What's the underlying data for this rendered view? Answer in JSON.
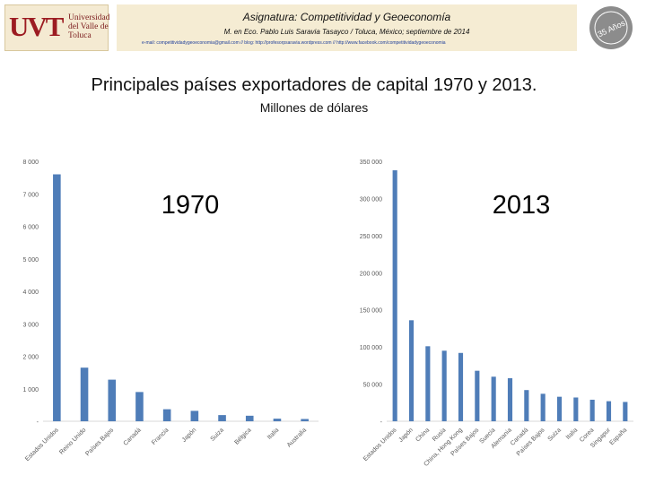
{
  "header": {
    "logo_mark": "UVT",
    "logo_text": "Universidad del Valle de Toluca",
    "title": "Asignatura: Competitividad y Geoeconomía",
    "subtitle": "M. en Eco. Pablo Luis Saravia Tasayco / Toluca, México; septiembre de 2014",
    "contact": "e-mail: competitividadygeoeconomia@gmail.com // blog: http://profesorpsaravia.wordpress.com // http://www.facebook.com/competitividadygeoeconomia",
    "seal_text": "35 Años"
  },
  "main_title": "Principales países exportadores de capital 1970 y 2013.",
  "subtitle": "Millones de dólares",
  "colors": {
    "bar": "#4f7db8",
    "axis_text": "#595959",
    "axis_line": "#d9d9d9",
    "banner": "#f5ecd3"
  },
  "chart_data": [
    {
      "type": "bar",
      "title": "1970",
      "categories": [
        "Estados Unidos",
        "Reino Unido",
        "Países Bajos",
        "Canadá",
        "Francia",
        "Japón",
        "Suiza",
        "Bélgica",
        "Italia",
        "Australia"
      ],
      "values": [
        7600,
        1650,
        1280,
        900,
        370,
        320,
        190,
        170,
        80,
        70
      ],
      "ylim": [
        0,
        8000
      ],
      "yticks": [
        "-",
        "1 000",
        "2 000",
        "3 000",
        "4 000",
        "5 000",
        "6 000",
        "7 000",
        "8 000"
      ],
      "grid": false
    },
    {
      "type": "bar",
      "title": "2013",
      "categories": [
        "Estados Unidos",
        "Japón",
        "China",
        "Rusia",
        "China, Hong Kong",
        "Países Bajos",
        "Suecia",
        "Alemania",
        "Canadá",
        "Países Bajos",
        "Suiza",
        "Italia",
        "Corea",
        "Singapur",
        "España"
      ],
      "values": [
        338000,
        136000,
        101000,
        95000,
        92000,
        68000,
        60000,
        58000,
        42000,
        37000,
        33000,
        32000,
        29000,
        27000,
        26000
      ],
      "ylim": [
        0,
        350000
      ],
      "yticks": [
        "-",
        "50 000",
        "100 000",
        "150 000",
        "200 000",
        "250 000",
        "300 000",
        "350 000"
      ],
      "grid": false
    }
  ]
}
